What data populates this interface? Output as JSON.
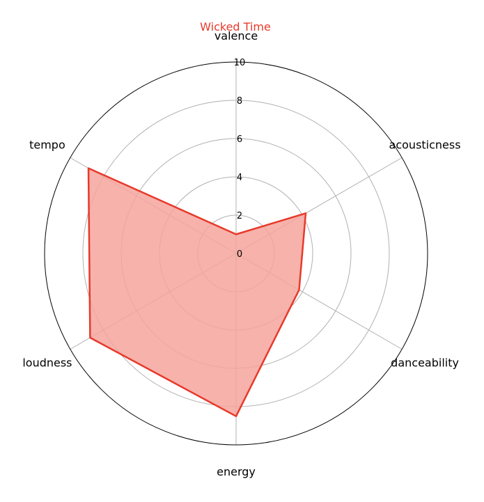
{
  "chart_data": {
    "type": "radar",
    "title": "Wicked Time",
    "series_color": "#e8392a",
    "fill_color": "#f4a49c",
    "axes": [
      "valence",
      "acousticness",
      "danceability",
      "energy",
      "loudness",
      "tempo"
    ],
    "series": [
      {
        "values": [
          1.0,
          4.2,
          3.8,
          8.5,
          8.8,
          8.9
        ]
      }
    ],
    "rlim": [
      0,
      10
    ],
    "rticks": [
      "0",
      "2",
      "4",
      "6",
      "8",
      "10"
    ],
    "grid": true
  }
}
